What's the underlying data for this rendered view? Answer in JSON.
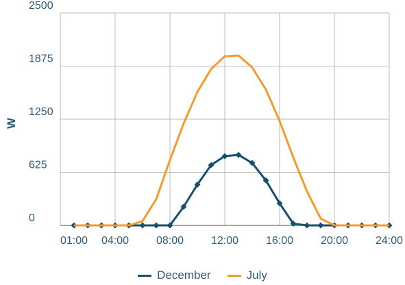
{
  "chart_data": {
    "type": "line",
    "ylabel": "W",
    "xlabel": "",
    "ylim": [
      0,
      2500
    ],
    "yticks": [
      "0",
      "625",
      "1250",
      "1875",
      "2500"
    ],
    "xlim": [
      0,
      24
    ],
    "xticks": [
      "01:00",
      "04:00",
      "08:00",
      "12:00",
      "16:00",
      "20:00",
      "24:00"
    ],
    "grid": true,
    "legend_position": "bottom",
    "x": [
      1,
      2,
      3,
      4,
      5,
      6,
      7,
      8,
      9,
      10,
      11,
      12,
      13,
      14,
      15,
      16,
      17,
      18,
      19,
      20,
      21,
      22,
      23,
      24
    ],
    "series": [
      {
        "name": "December",
        "color": "#16506e",
        "marker": "diamond",
        "values": [
          0,
          0,
          0,
          0,
          0,
          0,
          0,
          0,
          220,
          480,
          710,
          815,
          830,
          735,
          530,
          260,
          20,
          0,
          0,
          0,
          0,
          0,
          0,
          0
        ]
      },
      {
        "name": "July",
        "color": "#f59a2b",
        "marker": "none",
        "values": [
          0,
          0,
          0,
          0,
          0,
          50,
          310,
          770,
          1200,
          1570,
          1840,
          1990,
          2000,
          1860,
          1600,
          1230,
          800,
          400,
          80,
          0,
          0,
          0,
          0,
          0
        ]
      }
    ]
  }
}
